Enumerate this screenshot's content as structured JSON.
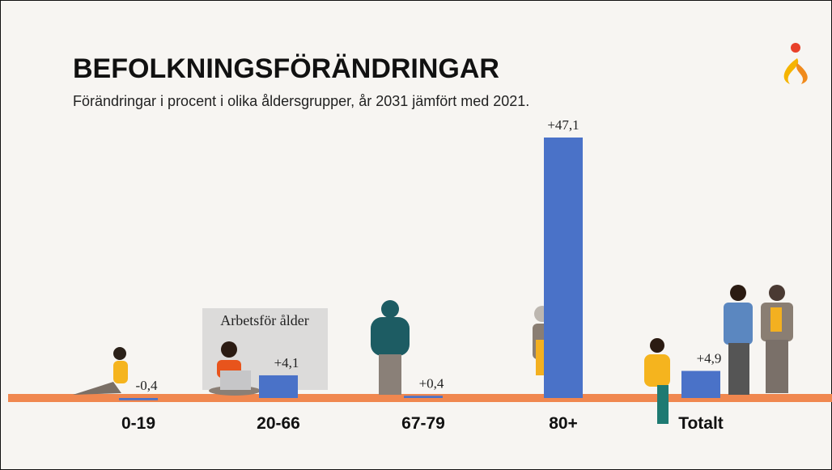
{
  "chart_data": {
    "type": "bar",
    "title": "BEFOLKNINGSFÖRÄNDRINGAR",
    "subtitle": "Förändringar i procent i olika åldersgrupper, år 2031 jämfört med 2021.",
    "categories": [
      "0-19",
      "20-66",
      "67-79",
      "80+",
      "Totalt"
    ],
    "values": [
      -0.4,
      4.1,
      0.4,
      47.1,
      4.9
    ],
    "value_labels": [
      "-0,4",
      "+4,1",
      "+0,4",
      "+47,1",
      "+4,9"
    ],
    "color": "#4a72c8",
    "annotation": "Arbetsför ålder"
  }
}
